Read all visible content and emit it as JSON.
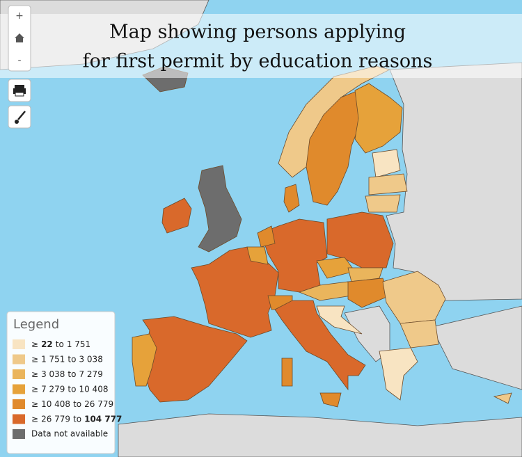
{
  "header": {
    "title_lines": [
      "Map showing persons applying",
      "for first permit by education reasons"
    ]
  },
  "controls": {
    "zoom_in": "+",
    "zoom_out": "-"
  },
  "legend": {
    "title": "Legend",
    "ge": "≥",
    "to": "to",
    "items": [
      {
        "min": "22",
        "max": "1 751",
        "color": "#f8e4c2",
        "bold": "min"
      },
      {
        "min": "1 751",
        "max": "3 038",
        "color": "#efc98a"
      },
      {
        "min": "3 038",
        "max": "7 279",
        "color": "#eab55c"
      },
      {
        "min": "7 279",
        "max": "10 408",
        "color": "#e6a23a"
      },
      {
        "min": "10 408",
        "max": "26 779",
        "color": "#e08a2c"
      },
      {
        "min": "26 779",
        "max": "104 777",
        "color": "#d9692b",
        "bold": "max"
      }
    ],
    "na": {
      "label": "Data not available",
      "color": "#6d6d6d"
    }
  }
}
